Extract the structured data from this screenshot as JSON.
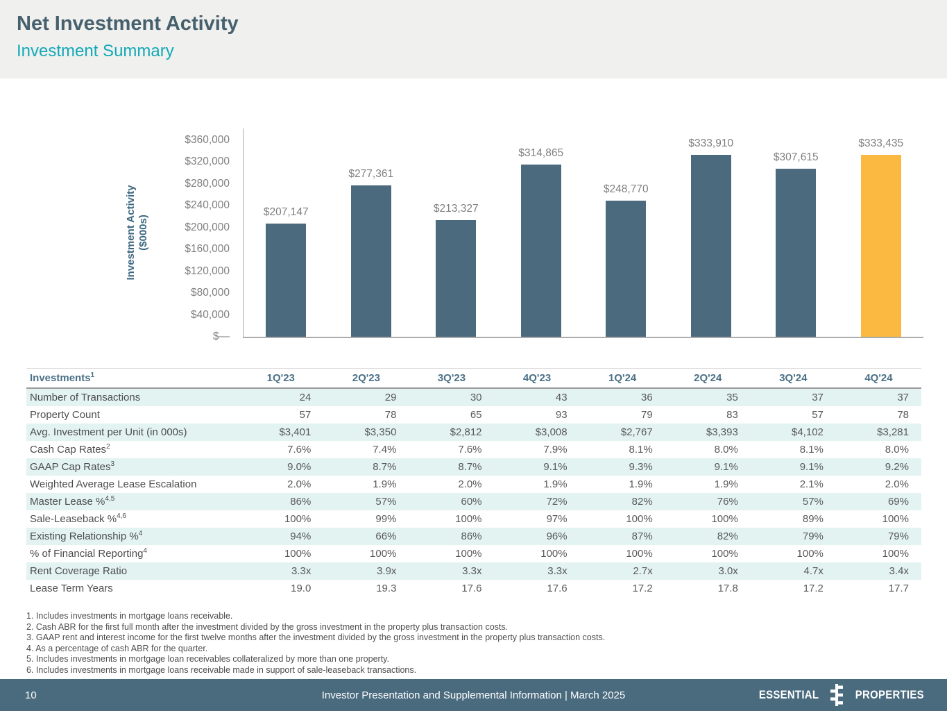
{
  "page": {
    "title": "Net Investment Activity",
    "subtitle": "Investment Summary",
    "page_number": "10",
    "footer_text": "Investor Presentation and Supplemental Information |  March 2025",
    "logo_left": "ESSENTIAL",
    "logo_right": "PROPERTIES"
  },
  "colors": {
    "header_band": "#F0F0EE",
    "title_text": "#46606E",
    "accent_teal": "#12A9B8",
    "bar": "#4C6A7E",
    "bar_highlight": "#FBB942",
    "row_tint": "#E2F3F1",
    "table_header_text": "#4A7086",
    "footer_bg": "#4A6B7E"
  },
  "chart_data": {
    "type": "bar",
    "title": "",
    "xlabel": "",
    "ylabel": "Investment Activity ($000s)",
    "categories": [
      "1Q'23",
      "2Q'23",
      "3Q'23",
      "4Q'23",
      "1Q'24",
      "2Q'24",
      "3Q'24",
      "4Q'24"
    ],
    "values": [
      207147,
      277361,
      213327,
      314865,
      248770,
      333910,
      307615,
      333435
    ],
    "value_labels": [
      "$207,147",
      "$277,361",
      "$213,327",
      "$314,865",
      "$248,770",
      "$333,910",
      "$307,615",
      "$333,435"
    ],
    "ylim": [
      0,
      360000
    ],
    "yticks": [
      {
        "label": "$360,000",
        "value": 360000
      },
      {
        "label": "$320,000",
        "value": 320000
      },
      {
        "label": "$280,000",
        "value": 280000
      },
      {
        "label": "$240,000",
        "value": 240000
      },
      {
        "label": "$200,000",
        "value": 200000
      },
      {
        "label": "$160,000",
        "value": 160000
      },
      {
        "label": "$120,000",
        "value": 120000
      },
      {
        "label": "$80,000",
        "value": 80000
      },
      {
        "label": "$40,000",
        "value": 40000
      },
      {
        "label": "$—",
        "value": 0
      }
    ],
    "grid": false,
    "legend": false,
    "highlight_index": 7
  },
  "table": {
    "title": "Investments",
    "title_sup": "1",
    "columns": [
      "1Q'23",
      "2Q'23",
      "3Q'23",
      "4Q'23",
      "1Q'24",
      "2Q'24",
      "3Q'24",
      "4Q'24"
    ],
    "rows": [
      {
        "label": "Number of Transactions",
        "sup": "",
        "values": [
          "24",
          "29",
          "30",
          "43",
          "36",
          "35",
          "37",
          "37"
        ]
      },
      {
        "label": "Property Count",
        "sup": "",
        "values": [
          "57",
          "78",
          "65",
          "93",
          "79",
          "83",
          "57",
          "78"
        ]
      },
      {
        "label": "Avg. Investment per Unit (in 000s)",
        "sup": "",
        "values": [
          "$3,401",
          "$3,350",
          "$2,812",
          "$3,008",
          "$2,767",
          "$3,393",
          "$4,102",
          "$3,281"
        ]
      },
      {
        "label": "Cash Cap Rates",
        "sup": "2",
        "values": [
          "7.6%",
          "7.4%",
          "7.6%",
          "7.9%",
          "8.1%",
          "8.0%",
          "8.1%",
          "8.0%"
        ]
      },
      {
        "label": "GAAP Cap Rates",
        "sup": "3",
        "values": [
          "9.0%",
          "8.7%",
          "8.7%",
          "9.1%",
          "9.3%",
          "9.1%",
          "9.1%",
          "9.2%"
        ]
      },
      {
        "label": "Weighted Average Lease Escalation",
        "sup": "",
        "values": [
          "2.0%",
          "1.9%",
          "2.0%",
          "1.9%",
          "1.9%",
          "1.9%",
          "2.1%",
          "2.0%"
        ]
      },
      {
        "label": "Master Lease %",
        "sup": "4,5",
        "values": [
          "86%",
          "57%",
          "60%",
          "72%",
          "82%",
          "76%",
          "57%",
          "69%"
        ]
      },
      {
        "label": "Sale-Leaseback %",
        "sup": "4,6",
        "values": [
          "100%",
          "99%",
          "100%",
          "97%",
          "100%",
          "100%",
          "89%",
          "100%"
        ]
      },
      {
        "label": "Existing Relationship %",
        "sup": "4",
        "values": [
          "94%",
          "66%",
          "86%",
          "96%",
          "87%",
          "82%",
          "79%",
          "79%"
        ]
      },
      {
        "label": "% of Financial Reporting",
        "sup": "4",
        "values": [
          "100%",
          "100%",
          "100%",
          "100%",
          "100%",
          "100%",
          "100%",
          "100%"
        ]
      },
      {
        "label": "Rent Coverage Ratio",
        "sup": "",
        "values": [
          "3.3x",
          "3.9x",
          "3.3x",
          "3.3x",
          "2.7x",
          "3.0x",
          "4.7x",
          "3.4x"
        ]
      },
      {
        "label": "Lease Term Years",
        "sup": "",
        "values": [
          "19.0",
          "19.3",
          "17.6",
          "17.6",
          "17.2",
          "17.8",
          "17.2",
          "17.7"
        ]
      }
    ]
  },
  "footnotes": [
    "1. Includes investments in mortgage loans receivable.",
    "2. Cash ABR for the first full month after the investment divided by the gross investment in the property plus transaction costs.",
    "3. GAAP rent and interest income for the first twelve months after the investment divided by the gross investment in the property plus transaction costs.",
    "4. As a percentage of cash ABR for the quarter.",
    "5. Includes investments in mortgage loan receivables collateralized by more than one property.",
    "6. Includes investments in mortgage loans receivable made in support of sale-leaseback transactions."
  ]
}
